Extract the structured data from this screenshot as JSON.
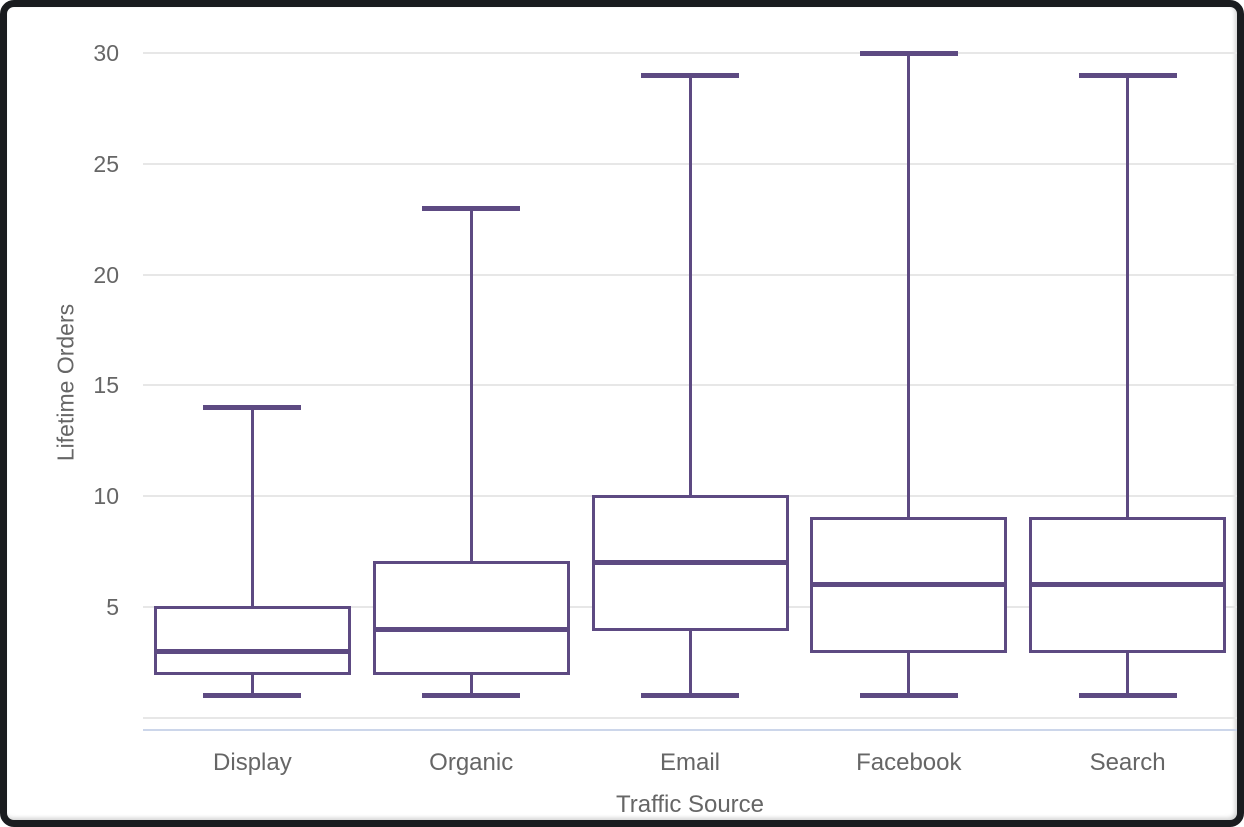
{
  "window": {
    "frame_color": "#1a1c1f",
    "background_color": "#ffffff"
  },
  "chart_data": {
    "type": "boxplot",
    "title": "",
    "xlabel": "Traffic Source",
    "ylabel": "Lifetime Orders",
    "categories": [
      "Display",
      "Organic",
      "Email",
      "Facebook",
      "Search"
    ],
    "series": [
      {
        "name": "Lifetime Orders",
        "points": [
          {
            "category": "Display",
            "min": 1,
            "q1": 2,
            "median": 3,
            "q3": 5,
            "max": 14
          },
          {
            "category": "Organic",
            "min": 1,
            "q1": 2,
            "median": 4,
            "q3": 7,
            "max": 23
          },
          {
            "category": "Email",
            "min": 1,
            "q1": 4,
            "median": 7,
            "q3": 10,
            "max": 29
          },
          {
            "category": "Facebook",
            "min": 1,
            "q1": 3,
            "median": 6,
            "q3": 9,
            "max": 30
          },
          {
            "category": "Search",
            "min": 1,
            "q1": 3,
            "median": 6,
            "q3": 9,
            "max": 29
          }
        ]
      }
    ],
    "yticks": [
      5,
      10,
      15,
      20,
      25,
      30
    ],
    "gridlines": [
      0,
      5,
      10,
      15,
      20,
      25,
      30
    ],
    "ylim": [
      -0.5,
      30
    ],
    "grid": true,
    "legend": false,
    "colors": {
      "box_stroke": "#5d4a82",
      "box_fill": "#ffffff",
      "gridline": "#e7e7e7",
      "axis_line": "#ccd6ea",
      "text": "#666666"
    }
  }
}
